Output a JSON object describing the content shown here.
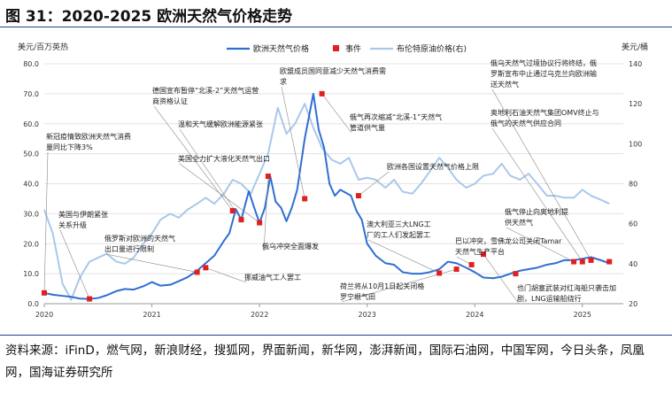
{
  "figure_title": "图 31：2020-2025 欧洲天然气价格走势",
  "source": "资料来源：iFinD，燃气网，新浪财经，搜狐网，界面新闻，新华网，澎湃新闻，国际石油网，中国军网，今日头条，凤凰网，国海证券研究所",
  "colors": {
    "gas": "#2f6fd0",
    "brent": "#a9c8ec",
    "event": "#e02020",
    "annotation": "#222222"
  },
  "chart_data": {
    "type": "line",
    "ylabel_left": "美元/百万英热",
    "ylabel_right": "美元/桶",
    "y_left_ticks": [
      "0.0",
      "10.0",
      "20.0",
      "30.0",
      "40.0",
      "50.0",
      "60.0",
      "70.0",
      "80.0"
    ],
    "y_right_ticks": [
      "20",
      "40",
      "60",
      "80",
      "100",
      "120",
      "140"
    ],
    "ylim_left": [
      0,
      80
    ],
    "ylim_right": [
      20,
      140
    ],
    "x_ticks": [
      "2020",
      "2021",
      "2022",
      "2023",
      "2024",
      "2025"
    ],
    "xlim": [
      2020.0,
      2025.38
    ],
    "legend": [
      "欧洲天然气价格",
      "事件",
      "布伦特原油价格(右)"
    ],
    "legend_position": "top",
    "series": [
      {
        "name": "欧洲天然气价格",
        "axis": "left",
        "x": [
          2020.0,
          2020.08,
          2020.17,
          2020.25,
          2020.33,
          2020.42,
          2020.5,
          2020.58,
          2020.67,
          2020.75,
          2020.83,
          2020.92,
          2021.0,
          2021.08,
          2021.17,
          2021.25,
          2021.33,
          2021.42,
          2021.5,
          2021.58,
          2021.67,
          2021.72,
          2021.78,
          2021.83,
          2021.9,
          2021.96,
          2022.0,
          2022.05,
          2022.1,
          2022.15,
          2022.2,
          2022.25,
          2022.3,
          2022.35,
          2022.42,
          2022.5,
          2022.55,
          2022.6,
          2022.65,
          2022.7,
          2022.75,
          2022.8,
          2022.85,
          2022.9,
          2022.95,
          2023.0,
          2023.08,
          2023.17,
          2023.25,
          2023.33,
          2023.42,
          2023.5,
          2023.58,
          2023.67,
          2023.75,
          2023.83,
          2023.92,
          2024.0,
          2024.08,
          2024.17,
          2024.25,
          2024.33,
          2024.42,
          2024.5,
          2024.58,
          2024.67,
          2024.75,
          2024.83,
          2024.92,
          2025.0,
          2025.08,
          2025.17,
          2025.25
        ],
        "y": [
          3.6,
          3.0,
          2.6,
          2.3,
          1.7,
          1.6,
          1.9,
          2.8,
          4.2,
          4.9,
          4.7,
          5.8,
          7.2,
          6.0,
          6.3,
          7.5,
          8.8,
          11.0,
          13.5,
          16.0,
          21.0,
          23.5,
          31.5,
          28.0,
          37.5,
          31.0,
          27.0,
          32.0,
          42.5,
          34.0,
          32.0,
          27.5,
          32.0,
          38.0,
          55.0,
          70.0,
          58.0,
          52.0,
          40.0,
          36.0,
          38.0,
          37.0,
          36.0,
          31.0,
          28.0,
          20.0,
          16.0,
          13.5,
          13.0,
          10.5,
          10.0,
          10.0,
          10.5,
          11.5,
          14.0,
          13.5,
          12.0,
          10.5,
          8.7,
          8.5,
          9.0,
          10.0,
          11.0,
          11.5,
          12.0,
          13.0,
          13.5,
          14.5,
          14.5,
          15.0,
          15.5,
          14.5,
          13.5
        ]
      },
      {
        "name": "布伦特原油价格(右)",
        "axis": "right",
        "x": [
          2020.0,
          2020.08,
          2020.17,
          2020.25,
          2020.33,
          2020.42,
          2020.5,
          2020.58,
          2020.67,
          2020.75,
          2020.83,
          2020.92,
          2021.0,
          2021.08,
          2021.17,
          2021.25,
          2021.33,
          2021.42,
          2021.5,
          2021.58,
          2021.67,
          2021.75,
          2021.83,
          2021.92,
          2022.0,
          2022.08,
          2022.17,
          2022.25,
          2022.33,
          2022.42,
          2022.5,
          2022.58,
          2022.67,
          2022.75,
          2022.83,
          2022.92,
          2023.0,
          2023.08,
          2023.17,
          2023.25,
          2023.33,
          2023.42,
          2023.5,
          2023.58,
          2023.67,
          2023.75,
          2023.83,
          2023.92,
          2024.0,
          2024.08,
          2024.17,
          2024.25,
          2024.33,
          2024.42,
          2024.5,
          2024.58,
          2024.67,
          2024.75,
          2024.83,
          2024.92,
          2025.0,
          2025.08,
          2025.17,
          2025.25
        ],
        "y": [
          67,
          55,
          30,
          22,
          33,
          41,
          43,
          45,
          41,
          40,
          43,
          50,
          55,
          62,
          65,
          63,
          67,
          70,
          73,
          70,
          75,
          82,
          80,
          75,
          85,
          95,
          118,
          105,
          110,
          120,
          108,
          98,
          92,
          90,
          93,
          82,
          83,
          82,
          78,
          82,
          76,
          75,
          80,
          86,
          93,
          88,
          82,
          78,
          80,
          84,
          85,
          90,
          84,
          82,
          85,
          80,
          74,
          74,
          73,
          73,
          77,
          74,
          72,
          70
        ]
      }
    ],
    "events": {
      "name": "事件",
      "x": [
        2020.0,
        2020.42,
        2021.42,
        2021.5,
        2021.75,
        2021.83,
        2022.0,
        2022.08,
        2022.42,
        2022.58,
        2022.92,
        2023.67,
        2023.83,
        2023.97,
        2024.08,
        2024.38,
        2024.92,
        2025.0,
        2025.08,
        2025.25
      ],
      "y": [
        3.6,
        1.6,
        10.5,
        12.0,
        31.0,
        28.0,
        27.0,
        42.5,
        35.0,
        70.0,
        36.0,
        10.2,
        11.5,
        13.0,
        16.5,
        10.0,
        14.0,
        14.0,
        14.5,
        14.0
      ]
    },
    "annotations": [
      {
        "text": [
          "新冠疫情致欧洲天然气消费",
          "量同比下降3%"
        ]
      },
      {
        "text": [
          "美国与伊朗紧张",
          "关系升级"
        ]
      },
      {
        "text": [
          "俄罗斯对欧洲的天然气",
          "出口量进行限制"
        ]
      },
      {
        "text": [
          "挪威油气工人罢工"
        ]
      },
      {
        "text": [
          "德国宣布暂停“北溪-2”天然气运营",
          "商资格认证"
        ]
      },
      {
        "text": [
          "温和天气缓解欧洲能源紧张"
        ]
      },
      {
        "text": [
          "美国全力扩大液化天然气出口"
        ]
      },
      {
        "text": [
          "俄乌冲突全面爆发"
        ]
      },
      {
        "text": [
          "欧盟成员国同意减少天然气消费需",
          "求"
        ]
      },
      {
        "text": [
          "俄气再次缩减“北溪-1”天然气",
          "管道供气量"
        ]
      },
      {
        "text": [
          "欧洲各国设置天然气价格上限"
        ]
      },
      {
        "text": [
          "澳大利亚三大LNG工",
          "厂的工人们发起罢工"
        ]
      },
      {
        "text": [
          "荷兰将从10月1日起关闭格",
          "罗宁根气田"
        ]
      },
      {
        "text": [
          "巴以冲突，雪佛龙公司关闭Tamar",
          "天然气生产平台"
        ]
      },
      {
        "text": [
          "也门胡塞武装对红海船只袭击加",
          "剧，LNG运输船绕行"
        ]
      },
      {
        "text": [
          "俄乌天然气过境协议行将终结，俄",
          "罗斯宣布中止通过乌克兰向欧洲输",
          "送天然气"
        ]
      },
      {
        "text": [
          "奥地利石油天然气集团OMV终止与",
          "俄气的天然气供应合同"
        ]
      },
      {
        "text": [
          "俄气停止向奥地利提",
          "供天然气"
        ]
      }
    ]
  }
}
